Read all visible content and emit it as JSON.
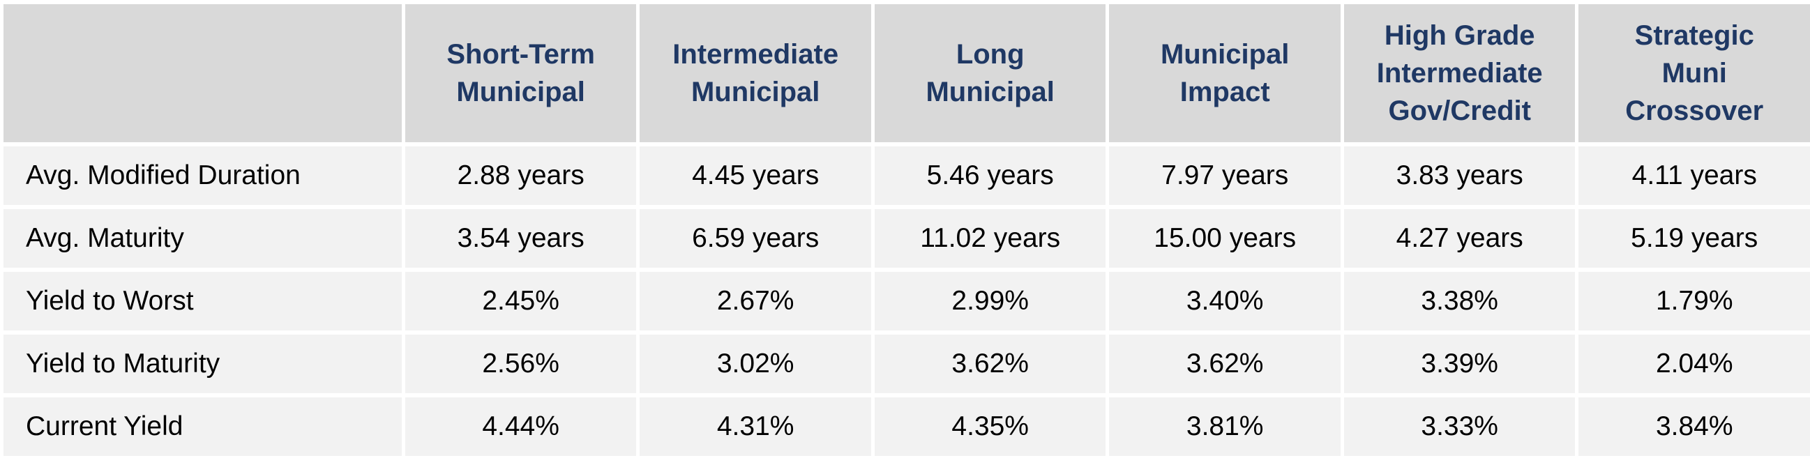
{
  "table": {
    "columns": [
      {
        "lines": [
          "Short-Term",
          "Municipal"
        ]
      },
      {
        "lines": [
          "Intermediate",
          "Municipal"
        ]
      },
      {
        "lines": [
          "Long",
          "Municipal"
        ]
      },
      {
        "lines": [
          "Municipal",
          "Impact"
        ]
      },
      {
        "lines": [
          "High Grade",
          "Intermediate",
          "Gov/Credit"
        ]
      },
      {
        "lines": [
          "Strategic",
          "Muni",
          "Crossover"
        ]
      }
    ],
    "rows": [
      {
        "label": "Avg. Modified Duration",
        "values": [
          "2.88 years",
          "4.45 years",
          "5.46 years",
          "7.97 years",
          "3.83 years",
          "4.11 years"
        ]
      },
      {
        "label": "Avg. Maturity",
        "values": [
          "3.54 years",
          "6.59 years",
          "11.02 years",
          "15.00 years",
          "4.27 years",
          "5.19 years"
        ]
      },
      {
        "label": "Yield to Worst",
        "values": [
          "2.45%",
          "2.67%",
          "2.99%",
          "3.40%",
          "3.38%",
          "1.79%"
        ]
      },
      {
        "label": "Yield to Maturity",
        "values": [
          "2.56%",
          "3.02%",
          "3.62%",
          "3.62%",
          "3.39%",
          "2.04%"
        ]
      },
      {
        "label": "Current Yield",
        "values": [
          "4.44%",
          "4.31%",
          "4.35%",
          "3.81%",
          "3.33%",
          "3.84%"
        ]
      }
    ]
  },
  "colors": {
    "header_bg": "#d9d9d9",
    "header_text": "#1f3864",
    "row_bg": "#f2f2f2",
    "body_text": "#000000"
  }
}
